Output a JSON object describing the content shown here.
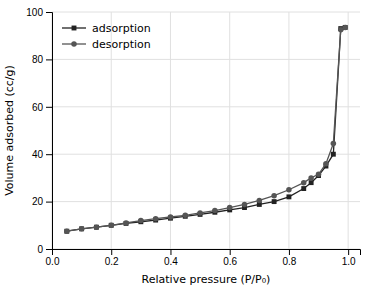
{
  "chart_data": {
    "type": "line",
    "x": [
      0.05,
      0.1,
      0.15,
      0.2,
      0.25,
      0.3,
      0.35,
      0.4,
      0.45,
      0.5,
      0.55,
      0.6,
      0.65,
      0.7,
      0.75,
      0.8,
      0.85,
      0.875,
      0.9,
      0.925,
      0.95,
      0.975,
      0.99
    ],
    "series": [
      {
        "name": "adsorption",
        "color": "#222222",
        "marker": "square",
        "values": [
          7.5,
          8.5,
          9.2,
          10.0,
          10.8,
          11.5,
          12.2,
          13.0,
          13.8,
          14.6,
          15.5,
          16.5,
          17.5,
          18.8,
          20.0,
          22.0,
          25.5,
          28.0,
          31.0,
          35.0,
          40.0,
          93.0,
          93.5
        ]
      },
      {
        "name": "desorption",
        "color": "#555555",
        "marker": "circle",
        "values": [
          7.5,
          8.5,
          9.2,
          10.0,
          11.0,
          12.0,
          12.8,
          13.5,
          14.2,
          15.2,
          16.2,
          17.5,
          18.8,
          20.5,
          22.5,
          25.0,
          28.0,
          30.0,
          31.5,
          36.0,
          44.5,
          92.5,
          93.5
        ]
      }
    ],
    "xlabel": "Relative pressure (P/P₀)",
    "ylabel": "Volume adsorbed (cc/g)",
    "xlim": [
      0.0,
      1.04
    ],
    "ylim": [
      0,
      100
    ],
    "xticks": [
      {
        "value": 0.0,
        "label": "0.0"
      },
      {
        "value": 0.2,
        "label": "0.2"
      },
      {
        "value": 0.4,
        "label": "0.4"
      },
      {
        "value": 0.6,
        "label": "0.6"
      },
      {
        "value": 0.8,
        "label": "0.8"
      },
      {
        "value": 1.0,
        "label": "1.0"
      }
    ],
    "yticks": [
      0,
      20,
      40,
      60,
      80,
      100
    ],
    "grid": true,
    "legend": "upper left"
  }
}
